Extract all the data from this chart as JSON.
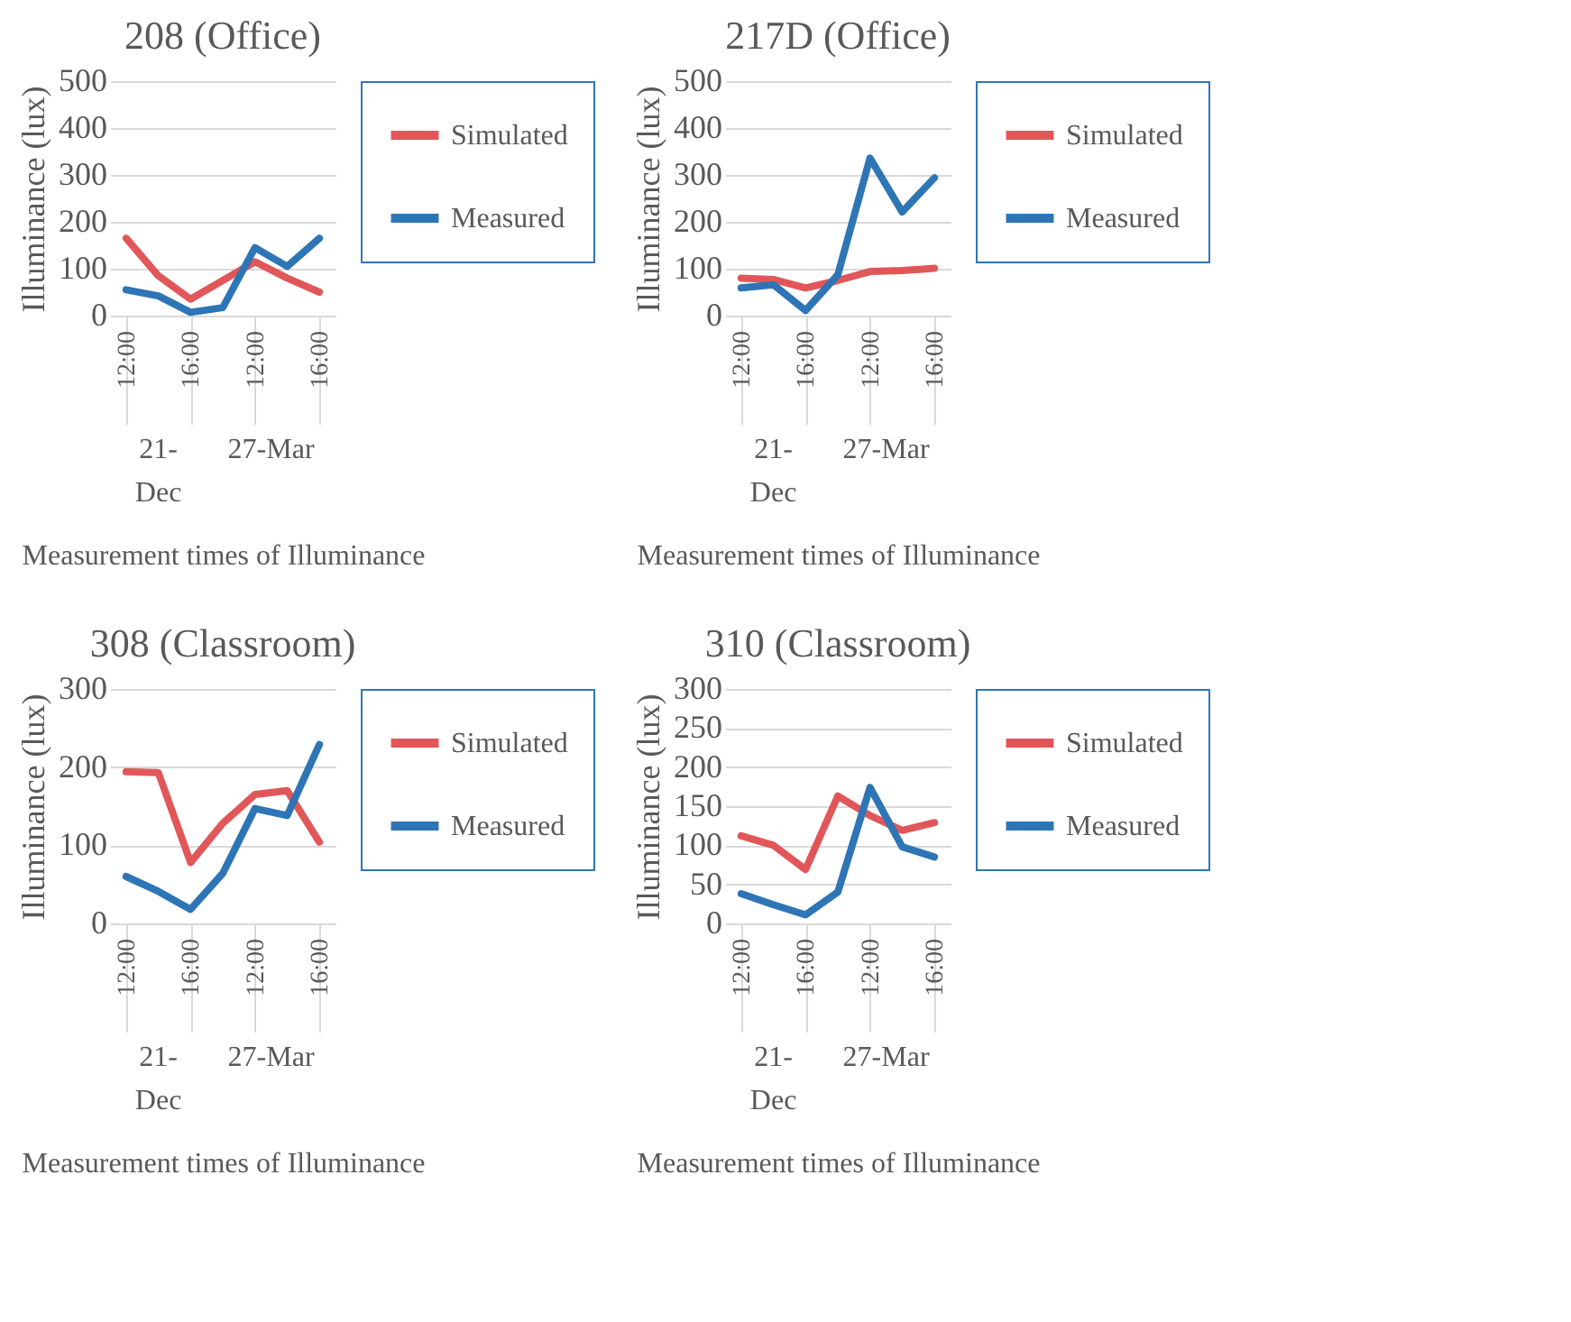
{
  "chart_data": [
    {
      "type": "line",
      "title": "208 (Office)",
      "xlabel": "Measurement times of Illuminance",
      "ylabel": "Illuminance (lux)",
      "categories": [
        "12:00",
        null,
        "16:00",
        null,
        "12:00",
        null,
        "16:00"
      ],
      "annotations": [
        "21-Dec",
        "27-Mar"
      ],
      "ylim": [
        0,
        500
      ],
      "yticks": [
        0,
        100,
        200,
        300,
        400,
        500
      ],
      "grid": "y",
      "legend": "right",
      "series": [
        {
          "name": "Simulated",
          "color": "#e15759",
          "values": [
            165,
            85,
            35,
            75,
            115,
            80,
            50
          ]
        },
        {
          "name": "Measured",
          "color": "#2e75b6",
          "values": [
            55,
            42,
            7,
            17,
            145,
            105,
            165
          ]
        }
      ]
    },
    {
      "type": "line",
      "title": "217D (Office)",
      "xlabel": "Measurement times of Illuminance",
      "ylabel": "Illuminance (lux)",
      "categories": [
        "12:00",
        null,
        "16:00",
        null,
        "12:00",
        null,
        "16:00"
      ],
      "annotations": [
        "21-Dec",
        "27-Mar"
      ],
      "ylim": [
        0,
        500
      ],
      "yticks": [
        0,
        100,
        200,
        300,
        400,
        500
      ],
      "grid": "y",
      "legend": "right",
      "series": [
        {
          "name": "Simulated",
          "color": "#e15759",
          "values": [
            80,
            77,
            59,
            75,
            94,
            96,
            101
          ]
        },
        {
          "name": "Measured",
          "color": "#2e75b6",
          "values": [
            59,
            66,
            11,
            87,
            336,
            221,
            294
          ]
        }
      ]
    },
    {
      "type": "line",
      "title": "308 (Classroom)",
      "xlabel": "Measurement times of Illuminance",
      "ylabel": "Illuminance (lux)",
      "categories": [
        "12:00",
        null,
        "16:00",
        null,
        "12:00",
        null,
        "16:00"
      ],
      "annotations": [
        "21-Dec",
        "27-Mar"
      ],
      "ylim": [
        0,
        300
      ],
      "yticks": [
        0,
        100,
        200,
        300
      ],
      "grid": "y",
      "legend": "right",
      "series": [
        {
          "name": "Simulated",
          "color": "#e15759",
          "values": [
            194,
            193,
            78,
            128,
            165,
            170,
            104
          ]
        },
        {
          "name": "Measured",
          "color": "#2e75b6",
          "values": [
            60,
            41,
            18,
            64,
            147,
            138,
            229
          ]
        }
      ]
    },
    {
      "type": "line",
      "title": "310 (Classroom)",
      "xlabel": "Measurement times of Illuminance",
      "ylabel": "Illuminance (lux)",
      "categories": [
        "12:00",
        null,
        "16:00",
        null,
        "12:00",
        null,
        "16:00"
      ],
      "annotations": [
        "21-Dec",
        "27-Mar"
      ],
      "ylim": [
        0,
        300
      ],
      "yticks": [
        0,
        50,
        100,
        150,
        200,
        250,
        300
      ],
      "grid": "y",
      "legend": "right",
      "series": [
        {
          "name": "Simulated",
          "color": "#e15759",
          "values": [
            112,
            100,
            69,
            163,
            138,
            119,
            129
          ]
        },
        {
          "name": "Measured",
          "color": "#2e75b6",
          "values": [
            38,
            24,
            11,
            40,
            174,
            98,
            85
          ]
        }
      ]
    }
  ]
}
